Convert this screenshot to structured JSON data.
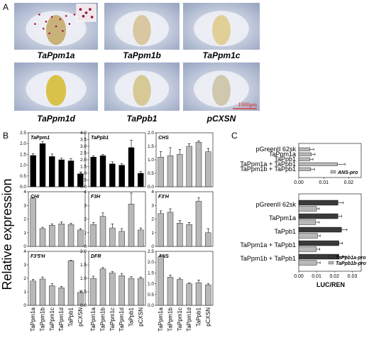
{
  "panel_a": {
    "letter": "A",
    "photos": [
      {
        "label": "TaPpm1a",
        "tone": "#c9b27a",
        "spots": true
      },
      {
        "label": "TaPpm1b",
        "tone": "#d8c7a0",
        "spots": false
      },
      {
        "label": "TaPpm1c",
        "tone": "#e0cf96",
        "spots": false
      },
      {
        "label": "TaPpm1d",
        "tone": "#d9c24a",
        "spots": false
      },
      {
        "label": "TaPpb1",
        "tone": "#d6c995",
        "spots": false
      },
      {
        "label": "pCXSN",
        "tone": "#cfc7ae",
        "spots": false
      }
    ],
    "scale_text": "1000μm",
    "scale_color": "#d8261c"
  },
  "panel_b": {
    "letter": "B",
    "ylabel": "Relative expression",
    "categories": [
      "TaPpm1a",
      "TaPpm1b",
      "TaPpm1c",
      "TaPpm1d",
      "TaPpb1",
      "pCXSN"
    ],
    "chart_data": [
      {
        "type": "bar",
        "title": "TaPpm1",
        "color": "#000000",
        "ylim": [
          0,
          2.5
        ],
        "yticks": [
          "0.0",
          "0.5",
          "1.0",
          "1.5",
          "2.0",
          "2.5"
        ],
        "values": [
          1.45,
          2.0,
          1.4,
          1.25,
          1.2,
          0.6
        ],
        "errors": [
          0.08,
          0.1,
          0.12,
          0.08,
          0.1,
          0.08
        ]
      },
      {
        "type": "bar",
        "title": "TaPpb1",
        "color": "#000000",
        "ylim": [
          0,
          4.0
        ],
        "yticks": [
          "0.0",
          "0.5",
          "1.0",
          "1.5",
          "2.0",
          "2.5",
          "3.0",
          "3.5",
          "4.0"
        ],
        "values": [
          2.2,
          2.3,
          1.7,
          1.6,
          2.9,
          1.0
        ],
        "errors": [
          0.1,
          0.1,
          0.15,
          0.1,
          0.55,
          0.12
        ]
      },
      {
        "type": "bar",
        "title": "CHS",
        "color": "#b8b8b8",
        "ylim": [
          0,
          2.0
        ],
        "yticks": [
          "0.0",
          "0.5",
          "1.0",
          "1.5",
          "2.0"
        ],
        "values": [
          1.1,
          1.15,
          1.2,
          1.5,
          1.65,
          1.3
        ],
        "errors": [
          0.2,
          0.3,
          0.18,
          0.1,
          0.05,
          0.12
        ]
      },
      {
        "type": "bar",
        "title": "CHI",
        "color": "#b8b8b8",
        "ylim": [
          0,
          4
        ],
        "yticks": [
          "0",
          "1",
          "2",
          "3",
          "4"
        ],
        "values": [
          3.5,
          1.3,
          1.55,
          1.65,
          1.6,
          1.2
        ],
        "errors": [
          0.1,
          0.1,
          0.1,
          0.15,
          0.1,
          0.1
        ]
      },
      {
        "type": "bar",
        "title": "F3H",
        "color": "#b8b8b8",
        "ylim": [
          0,
          4
        ],
        "yticks": [
          "0",
          "1",
          "2",
          "3",
          "4"
        ],
        "values": [
          1.6,
          2.2,
          1.35,
          1.1,
          3.1,
          1.2
        ],
        "errors": [
          0.15,
          0.25,
          0.3,
          0.2,
          0.8,
          0.15
        ]
      },
      {
        "type": "bar",
        "title": "F3'H",
        "color": "#b8b8b8",
        "ylim": [
          0,
          4
        ],
        "yticks": [
          "0",
          "1",
          "2",
          "3",
          "4"
        ],
        "values": [
          2.4,
          2.5,
          1.7,
          1.6,
          3.3,
          1.0
        ],
        "errors": [
          0.2,
          0.25,
          0.2,
          0.15,
          0.25,
          0.3
        ]
      },
      {
        "type": "bar",
        "title": "F3'5'H",
        "color": "#b8b8b8",
        "ylim": [
          0,
          4
        ],
        "yticks": [
          "0",
          "1",
          "2",
          "3",
          "4"
        ],
        "values": [
          1.8,
          1.95,
          1.45,
          1.3,
          3.3,
          0.95
        ],
        "errors": [
          0.12,
          0.15,
          0.15,
          0.1,
          0.05,
          0.1
        ]
      },
      {
        "type": "bar",
        "title": "DFR",
        "color": "#b8b8b8",
        "ylim": [
          0,
          2.0
        ],
        "yticks": [
          "0.0",
          "0.5",
          "1.0",
          "1.5",
          "2.0"
        ],
        "values": [
          1.0,
          1.35,
          1.2,
          1.1,
          1.0,
          1.0
        ],
        "errors": [
          0.08,
          0.05,
          0.05,
          0.08,
          0.06,
          0.05
        ]
      },
      {
        "type": "bar",
        "title": "ANS",
        "color": "#b8b8b8",
        "ylim": [
          0,
          2.5
        ],
        "yticks": [
          "0.0",
          "0.5",
          "1.0",
          "1.5",
          "2.0",
          "2.5"
        ],
        "values": [
          2.25,
          1.3,
          1.2,
          1.0,
          1.05,
          0.95
        ],
        "errors": [
          0.08,
          0.1,
          0.06,
          0.05,
          0.12,
          0.06
        ]
      }
    ]
  },
  "panel_c": {
    "letter": "C",
    "xlabel": "LUC/REN",
    "charts": [
      {
        "type": "bar",
        "orientation": "horizontal",
        "categories": [
          "pGreenII 62sk",
          "TaPpm1a",
          "TaPpb1",
          "TaPpm1a + TaPpb1",
          "TaPpm1b + TaPpb1"
        ],
        "xlim": [
          0,
          0.025
        ],
        "xticks": [
          "0.00",
          "0.01",
          "0.02"
        ],
        "xtick_values": [
          0,
          0.01,
          0.02
        ],
        "series": [
          {
            "name": "ANS-pro",
            "color": "#b8b8b8",
            "values": [
              0.0045,
              0.005,
              0.0045,
              0.0155,
              0.0048
            ],
            "errors": [
              0.0015,
              0.0015,
              0.0012,
              0.003,
              0.0015
            ]
          }
        ]
      },
      {
        "type": "bar",
        "orientation": "horizontal",
        "categories": [
          "pGreenII 62sk",
          "TaPpm1a",
          "TaPpb1",
          "TaPpm1a + TaPpb1",
          "TaPpm1b + TaPpb1"
        ],
        "xlim": [
          0,
          0.035
        ],
        "xticks": [
          "0.00",
          "0.01",
          "0.02",
          "0.03"
        ],
        "xtick_values": [
          0,
          0.01,
          0.02,
          0.03
        ],
        "series": [
          {
            "name": "TaPpb1a-pro",
            "color": "#3a3a3a",
            "values": [
              0.022,
              0.022,
              0.024,
              0.0225,
              0.0225
            ],
            "errors": [
              0.003,
              0.002,
              0.003,
              0.002,
              0.004
            ]
          },
          {
            "name": "TaPpb1b-pro",
            "color": "#b8b8b8",
            "values": [
              0.01,
              0.0095,
              0.0105,
              0.0098,
              0.01
            ],
            "errors": [
              0.0015,
              0.002,
              0.0015,
              0.002,
              0.002
            ]
          }
        ]
      }
    ]
  }
}
